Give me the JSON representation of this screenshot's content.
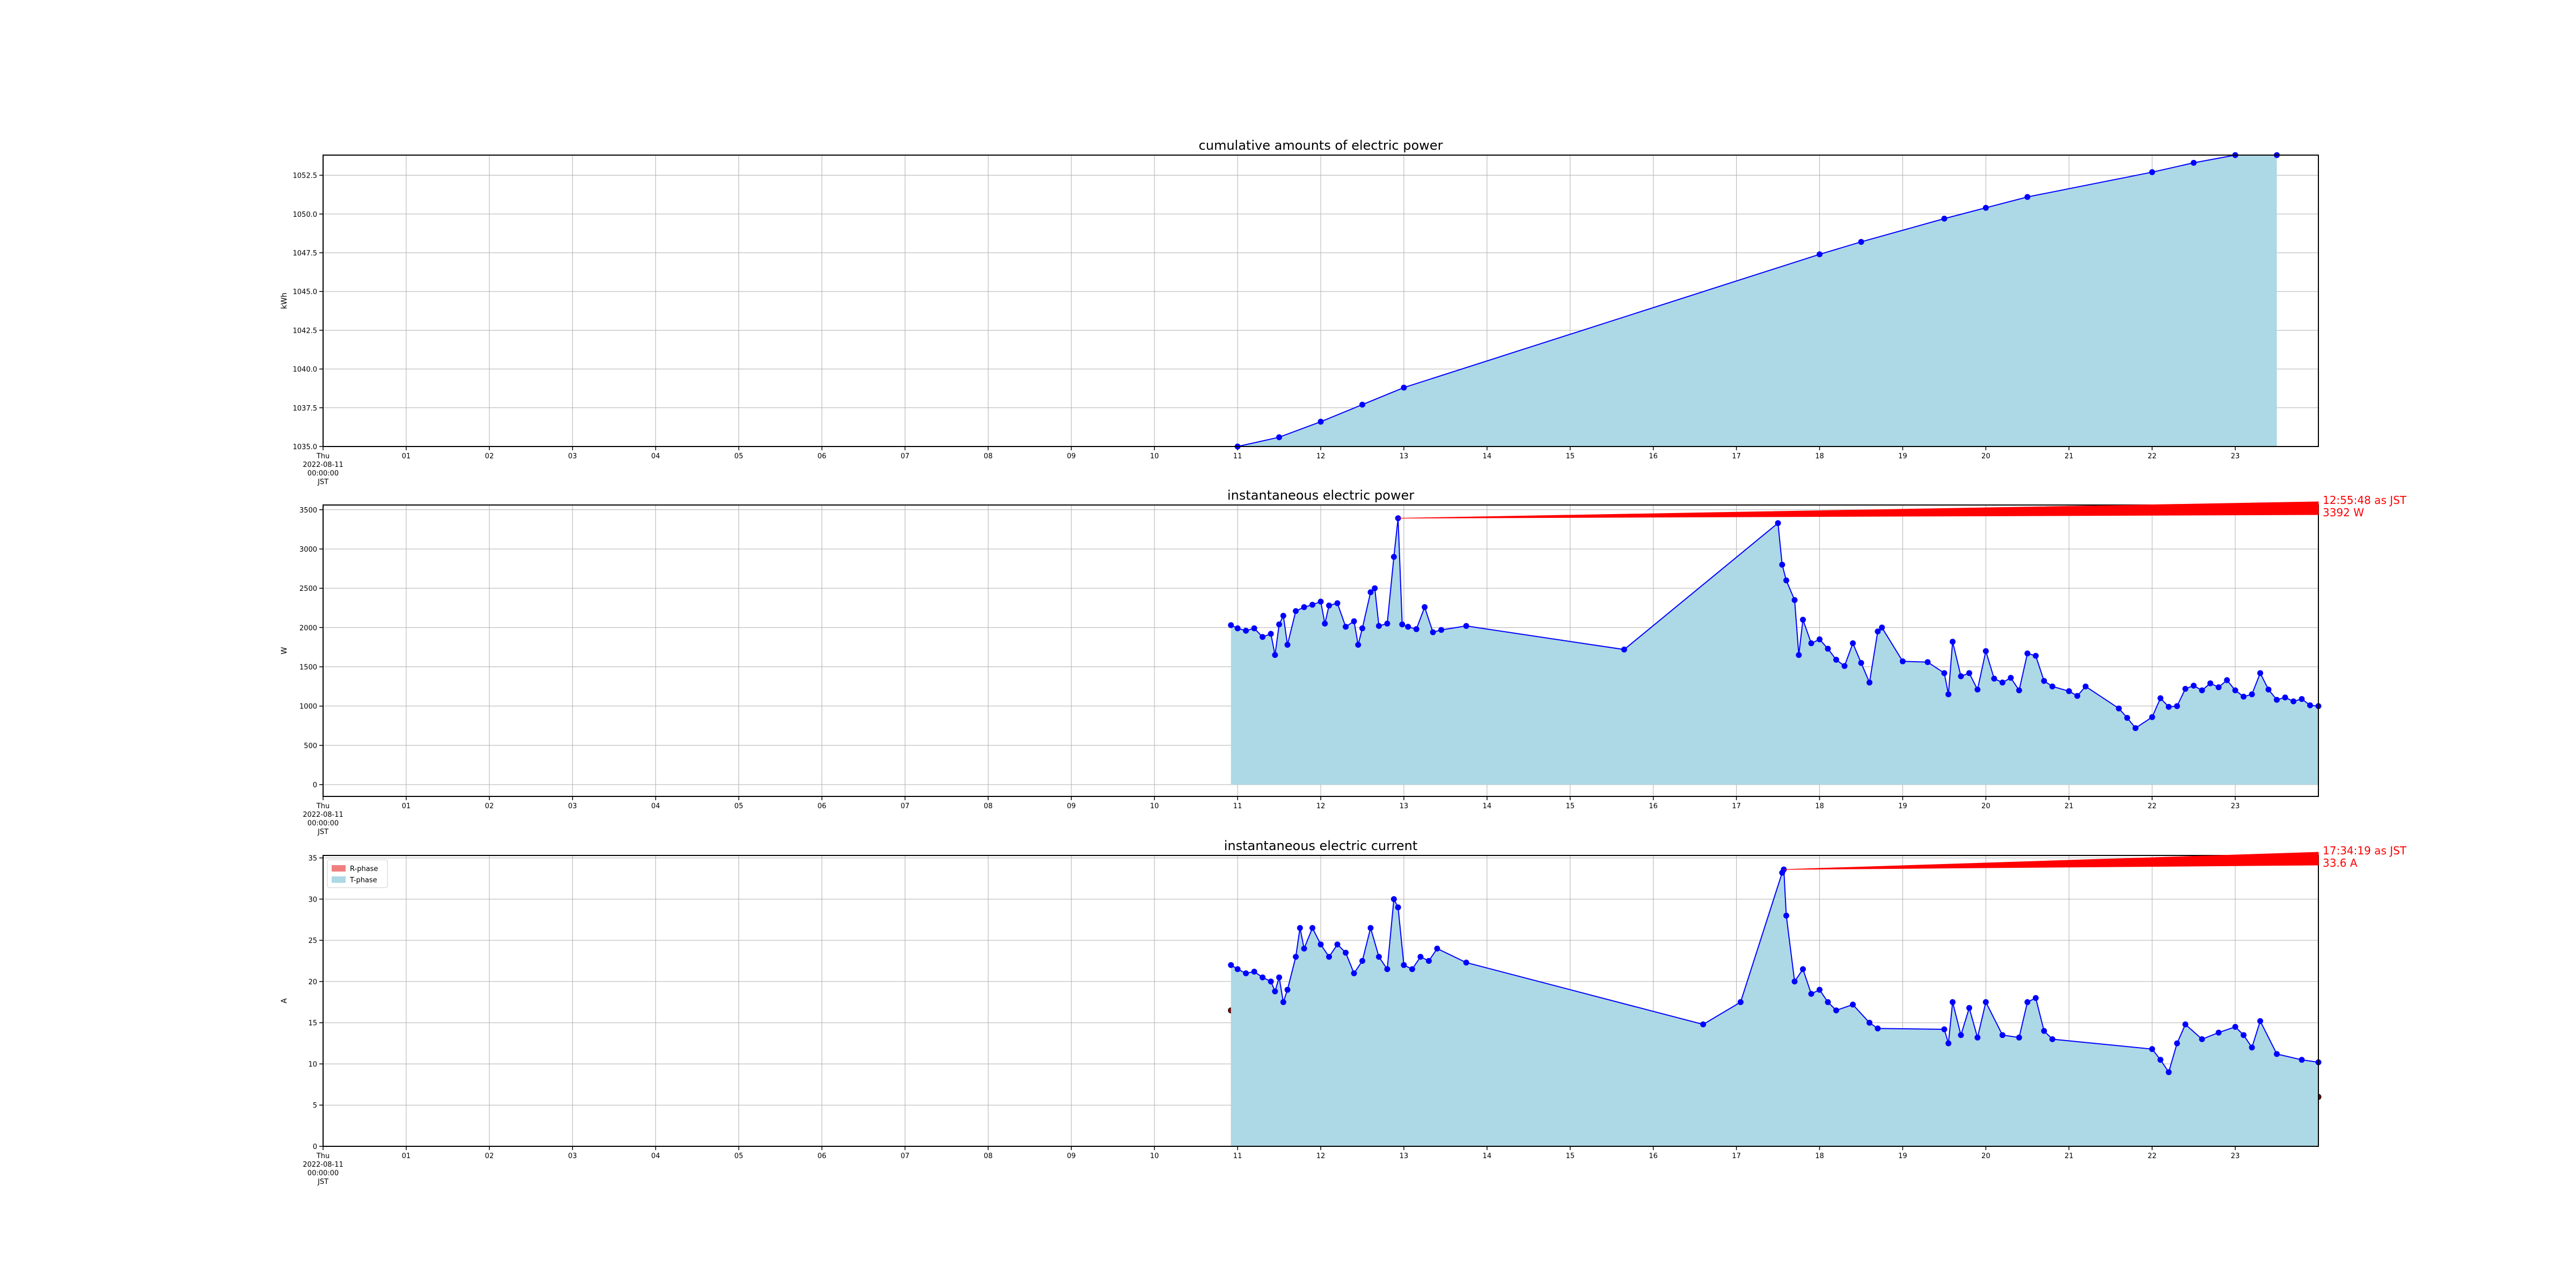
{
  "chart_data": [
    {
      "type": "area",
      "title": "cumulative amounts of electric power",
      "ylabel": "kWh",
      "xlabel": "",
      "x_unit": "hour of day",
      "xlim": [
        0,
        24
      ],
      "ylim": [
        1035,
        1053.8
      ],
      "grid": true,
      "x_ticks": [
        {
          "value": 0,
          "label": "Thu\n2022-08-11\n00:00:00\nJST"
        },
        {
          "value": 1,
          "label": "01"
        },
        {
          "value": 2,
          "label": "02"
        },
        {
          "value": 3,
          "label": "03"
        },
        {
          "value": 4,
          "label": "04"
        },
        {
          "value": 5,
          "label": "05"
        },
        {
          "value": 6,
          "label": "06"
        },
        {
          "value": 7,
          "label": "07"
        },
        {
          "value": 8,
          "label": "08"
        },
        {
          "value": 9,
          "label": "09"
        },
        {
          "value": 10,
          "label": "10"
        },
        {
          "value": 11,
          "label": "11"
        },
        {
          "value": 12,
          "label": "12"
        },
        {
          "value": 13,
          "label": "13"
        },
        {
          "value": 14,
          "label": "14"
        },
        {
          "value": 15,
          "label": "15"
        },
        {
          "value": 16,
          "label": "16"
        },
        {
          "value": 17,
          "label": "17"
        },
        {
          "value": 18,
          "label": "18"
        },
        {
          "value": 19,
          "label": "19"
        },
        {
          "value": 20,
          "label": "20"
        },
        {
          "value": 21,
          "label": "21"
        },
        {
          "value": 22,
          "label": "22"
        },
        {
          "value": 23,
          "label": "23"
        }
      ],
      "y_ticks": [
        {
          "value": 1035.0,
          "label": "1035.0"
        },
        {
          "value": 1037.5,
          "label": "1037.5"
        },
        {
          "value": 1040.0,
          "label": "1040.0"
        },
        {
          "value": 1042.5,
          "label": "1042.5"
        },
        {
          "value": 1045.0,
          "label": "1045.0"
        },
        {
          "value": 1047.5,
          "label": "1047.5"
        },
        {
          "value": 1050.0,
          "label": "1050.0"
        },
        {
          "value": 1052.5,
          "label": "1052.5"
        }
      ],
      "series": [
        {
          "line_color": "#0000ff",
          "fill_color": "#add8e6",
          "x": [
            11.0,
            11.5,
            12.0,
            12.5,
            13.0,
            18.0,
            18.5,
            19.5,
            20.0,
            20.5,
            22.0,
            22.5,
            23.0,
            23.5
          ],
          "y": [
            1034.8,
            1035.6,
            1036.6,
            1037.7,
            1038.8,
            1047.4,
            1048.2,
            1049.7,
            1050.4,
            1051.1,
            1052.7,
            1053.3,
            1053.9,
            1054.6
          ]
        }
      ]
    },
    {
      "type": "area",
      "title": "instantaneous electric power",
      "ylabel": "W",
      "xlabel": "",
      "x_unit": "hour of day",
      "xlim": [
        0,
        24
      ],
      "ylim": [
        -150,
        3560
      ],
      "grid": true,
      "x_ticks": [
        {
          "value": 0,
          "label": "Thu\n2022-08-11\n00:00:00\nJST"
        },
        {
          "value": 1,
          "label": "01"
        },
        {
          "value": 2,
          "label": "02"
        },
        {
          "value": 3,
          "label": "03"
        },
        {
          "value": 4,
          "label": "04"
        },
        {
          "value": 5,
          "label": "05"
        },
        {
          "value": 6,
          "label": "06"
        },
        {
          "value": 7,
          "label": "07"
        },
        {
          "value": 8,
          "label": "08"
        },
        {
          "value": 9,
          "label": "09"
        },
        {
          "value": 10,
          "label": "10"
        },
        {
          "value": 11,
          "label": "11"
        },
        {
          "value": 12,
          "label": "12"
        },
        {
          "value": 13,
          "label": "13"
        },
        {
          "value": 14,
          "label": "14"
        },
        {
          "value": 15,
          "label": "15"
        },
        {
          "value": 16,
          "label": "16"
        },
        {
          "value": 17,
          "label": "17"
        },
        {
          "value": 18,
          "label": "18"
        },
        {
          "value": 19,
          "label": "19"
        },
        {
          "value": 20,
          "label": "20"
        },
        {
          "value": 21,
          "label": "21"
        },
        {
          "value": 22,
          "label": "22"
        },
        {
          "value": 23,
          "label": "23"
        }
      ],
      "y_ticks": [
        {
          "value": 0,
          "label": "0"
        },
        {
          "value": 500,
          "label": "500"
        },
        {
          "value": 1000,
          "label": "1000"
        },
        {
          "value": 1500,
          "label": "1500"
        },
        {
          "value": 2000,
          "label": "2000"
        },
        {
          "value": 2500,
          "label": "2500"
        },
        {
          "value": 3000,
          "label": "3000"
        },
        {
          "value": 3500,
          "label": "3500"
        }
      ],
      "annotation": {
        "x": 12.93,
        "y": 3392,
        "lines": [
          "12:55:48 as JST",
          "3392 W"
        ],
        "color": "#ff0000"
      },
      "series": [
        {
          "line_color": "#0000ff",
          "fill_color": "#add8e6",
          "x": [
            10.92,
            11.0,
            11.1,
            11.2,
            11.3,
            11.4,
            11.45,
            11.5,
            11.55,
            11.6,
            11.7,
            11.8,
            11.9,
            12.0,
            12.05,
            12.1,
            12.2,
            12.3,
            12.4,
            12.45,
            12.5,
            12.6,
            12.65,
            12.7,
            12.8,
            12.88,
            12.93,
            12.98,
            13.05,
            13.15,
            13.25,
            13.35,
            13.45,
            13.75,
            15.65,
            17.5,
            17.55,
            17.6,
            17.7,
            17.75,
            17.8,
            17.9,
            18.0,
            18.1,
            18.2,
            18.3,
            18.4,
            18.5,
            18.6,
            18.7,
            18.75,
            19.0,
            19.3,
            19.5,
            19.55,
            19.6,
            19.7,
            19.8,
            19.9,
            20.0,
            20.1,
            20.2,
            20.3,
            20.4,
            20.5,
            20.6,
            20.7,
            20.8,
            21.0,
            21.1,
            21.2,
            21.6,
            21.7,
            21.8,
            22.0,
            22.1,
            22.2,
            22.3,
            22.4,
            22.5,
            22.6,
            22.7,
            22.8,
            22.9,
            23.0,
            23.1,
            23.2,
            23.3,
            23.4,
            23.5,
            23.6,
            23.7,
            23.8,
            23.9,
            24.0
          ],
          "y": [
            2030,
            1990,
            1960,
            1990,
            1880,
            1920,
            1650,
            2040,
            2150,
            1780,
            2210,
            2260,
            2290,
            2330,
            2050,
            2280,
            2310,
            2010,
            2080,
            1780,
            1990,
            2450,
            2500,
            2020,
            2050,
            2900,
            3392,
            2040,
            2010,
            1980,
            2260,
            1940,
            1970,
            2020,
            1720,
            3330,
            2800,
            2600,
            2350,
            1650,
            2100,
            1800,
            1850,
            1730,
            1590,
            1510,
            1800,
            1550,
            1300,
            1950,
            2000,
            1570,
            1560,
            1420,
            1150,
            1820,
            1380,
            1420,
            1210,
            1700,
            1350,
            1300,
            1360,
            1200,
            1670,
            1640,
            1320,
            1250,
            1190,
            1130,
            1250,
            970,
            850,
            720,
            860,
            1100,
            990,
            1000,
            1220,
            1260,
            1200,
            1290,
            1240,
            1330,
            1200,
            1120,
            1150,
            1420,
            1210,
            1080,
            1110,
            1060,
            1090,
            1010,
            1000
          ]
        }
      ]
    },
    {
      "type": "area",
      "title": "instantaneous electric current",
      "ylabel": "A",
      "xlabel": "",
      "x_unit": "hour of day",
      "xlim": [
        0,
        24
      ],
      "ylim": [
        0,
        35.3
      ],
      "grid": true,
      "legend": "top-left",
      "x_ticks": [
        {
          "value": 0,
          "label": "Thu\n2022-08-11\n00:00:00\nJST"
        },
        {
          "value": 1,
          "label": "01"
        },
        {
          "value": 2,
          "label": "02"
        },
        {
          "value": 3,
          "label": "03"
        },
        {
          "value": 4,
          "label": "04"
        },
        {
          "value": 5,
          "label": "05"
        },
        {
          "value": 6,
          "label": "06"
        },
        {
          "value": 7,
          "label": "07"
        },
        {
          "value": 8,
          "label": "08"
        },
        {
          "value": 9,
          "label": "09"
        },
        {
          "value": 10,
          "label": "10"
        },
        {
          "value": 11,
          "label": "11"
        },
        {
          "value": 12,
          "label": "12"
        },
        {
          "value": 13,
          "label": "13"
        },
        {
          "value": 14,
          "label": "14"
        },
        {
          "value": 15,
          "label": "15"
        },
        {
          "value": 16,
          "label": "16"
        },
        {
          "value": 17,
          "label": "17"
        },
        {
          "value": 18,
          "label": "18"
        },
        {
          "value": 19,
          "label": "19"
        },
        {
          "value": 20,
          "label": "20"
        },
        {
          "value": 21,
          "label": "21"
        },
        {
          "value": 22,
          "label": "22"
        },
        {
          "value": 23,
          "label": "23"
        }
      ],
      "y_ticks": [
        {
          "value": 0,
          "label": "0"
        },
        {
          "value": 5,
          "label": "5"
        },
        {
          "value": 10,
          "label": "10"
        },
        {
          "value": 15,
          "label": "15"
        },
        {
          "value": 20,
          "label": "20"
        },
        {
          "value": 25,
          "label": "25"
        },
        {
          "value": 30,
          "label": "30"
        },
        {
          "value": 35,
          "label": "35"
        }
      ],
      "annotation": {
        "x": 17.57,
        "y": 33.6,
        "lines": [
          "17:34:19 as JST",
          "33.6 A"
        ],
        "color": "#ff0000"
      },
      "series": [
        {
          "name": "R-phase",
          "line_color": "#000000",
          "marker_color": "#800000",
          "fill_color": "#f08080",
          "x": [
            10.92,
            11.0,
            11.1,
            11.2,
            11.3,
            11.4,
            11.45,
            11.5,
            11.6,
            11.7,
            11.8,
            11.9,
            12.0,
            12.1,
            12.2,
            12.3,
            12.4,
            12.5,
            12.6,
            12.7,
            12.8,
            12.88,
            12.93,
            13.0,
            13.1,
            13.2,
            13.3,
            13.4,
            13.75,
            16.6,
            17.05,
            17.55,
            17.6,
            17.7,
            17.8,
            17.9,
            18.0,
            18.2,
            18.4,
            18.6,
            18.7,
            19.5,
            19.55,
            19.6,
            19.8,
            19.9,
            20.0,
            20.2,
            20.4,
            20.5,
            20.6,
            20.7,
            20.8,
            22.0,
            22.1,
            22.2,
            22.3,
            22.4,
            22.6,
            22.8,
            23.0,
            23.1,
            23.3,
            23.5,
            23.8,
            24.0
          ],
          "y": [
            16.5,
            16.8,
            16.2,
            15.6,
            15.0,
            14.0,
            13.4,
            16.2,
            14.5,
            18.5,
            19.0,
            19.5,
            19.8,
            18.5,
            20.0,
            19.2,
            16.5,
            18.0,
            17.0,
            19.0,
            17.0,
            23.0,
            24.8,
            17.0,
            17.2,
            18.0,
            17.5,
            17.3,
            17.7,
            11.3,
            13.8,
            22.8,
            22.5,
            15.8,
            12.0,
            14.5,
            13.5,
            12.5,
            11.2,
            11.0,
            9.0,
            9.5,
            7.2,
            10.0,
            9.3,
            8.0,
            10.2,
            9.5,
            8.0,
            11.8,
            9.5,
            10.0,
            8.5,
            7.6,
            6.5,
            5.8,
            8.0,
            8.8,
            9.5,
            9.8,
            9.6,
            8.3,
            6.8,
            7.0,
            6.6,
            6.0
          ]
        },
        {
          "name": "T-phase",
          "line_color": "#0000ff",
          "marker_color": "#0000ff",
          "fill_color": "#add8e6",
          "x": [
            10.92,
            11.0,
            11.1,
            11.2,
            11.3,
            11.4,
            11.45,
            11.5,
            11.55,
            11.6,
            11.7,
            11.75,
            11.8,
            11.9,
            12.0,
            12.1,
            12.2,
            12.3,
            12.4,
            12.5,
            12.6,
            12.7,
            12.8,
            12.88,
            12.93,
            13.0,
            13.1,
            13.2,
            13.3,
            13.4,
            13.75,
            16.6,
            17.05,
            17.55,
            17.57,
            17.6,
            17.7,
            17.8,
            17.9,
            18.0,
            18.1,
            18.2,
            18.4,
            18.6,
            18.7,
            19.5,
            19.55,
            19.6,
            19.7,
            19.8,
            19.9,
            20.0,
            20.2,
            20.4,
            20.5,
            20.6,
            20.7,
            20.8,
            22.0,
            22.1,
            22.2,
            22.3,
            22.4,
            22.6,
            22.8,
            23.0,
            23.1,
            23.2,
            23.3,
            23.5,
            23.8,
            24.0
          ],
          "y": [
            22.0,
            21.5,
            21.0,
            21.2,
            20.5,
            20.0,
            18.8,
            20.5,
            17.5,
            19.0,
            23.0,
            26.5,
            24.0,
            26.5,
            24.5,
            23.0,
            24.5,
            23.5,
            21.0,
            22.5,
            26.5,
            23.0,
            21.5,
            30.0,
            29.0,
            22.0,
            21.5,
            23.0,
            22.5,
            24.0,
            22.3,
            14.8,
            17.5,
            33.2,
            33.6,
            28.0,
            20.0,
            21.5,
            18.5,
            19.0,
            17.5,
            16.5,
            17.2,
            15.0,
            14.3,
            14.2,
            12.5,
            17.5,
            13.5,
            16.8,
            13.2,
            17.5,
            13.5,
            13.2,
            17.5,
            18.0,
            14.0,
            13.0,
            11.8,
            10.5,
            9.0,
            12.5,
            14.8,
            13.0,
            13.8,
            14.5,
            13.5,
            12.0,
            15.2,
            11.2,
            10.5,
            10.2
          ]
        }
      ]
    }
  ]
}
